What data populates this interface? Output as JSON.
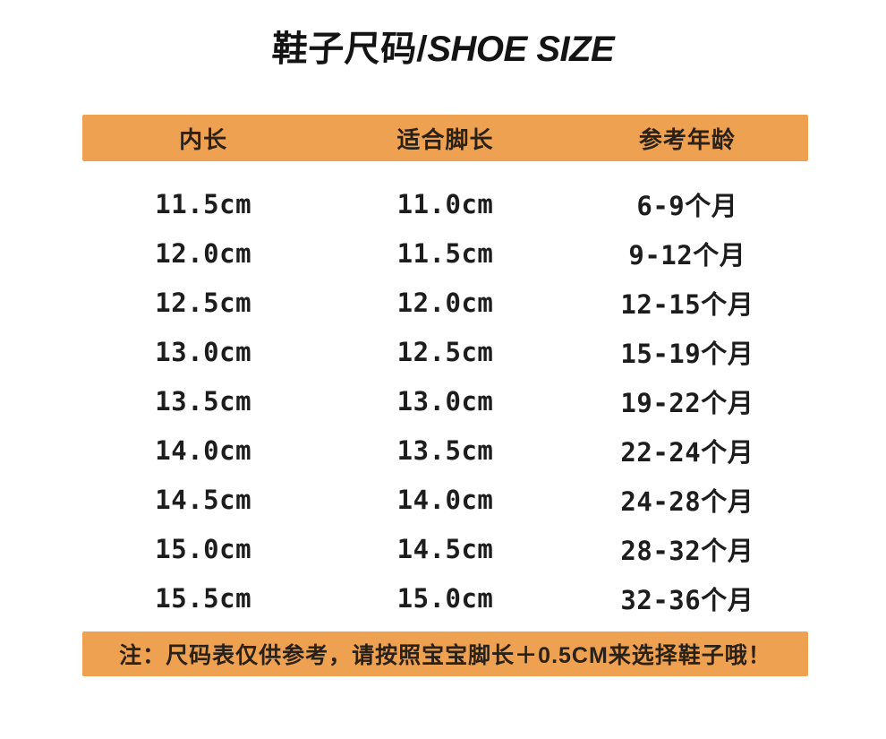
{
  "page": {
    "title_zh": "鞋子尺码/",
    "title_en": "SHOE SIZE"
  },
  "table": {
    "headers": [
      "内长",
      "适合脚长",
      "参考年龄"
    ],
    "rows": [
      [
        "11.5cm",
        "11.0cm",
        "6-9个月"
      ],
      [
        "12.0cm",
        "11.5cm",
        "9-12个月"
      ],
      [
        "12.5cm",
        "12.0cm",
        "12-15个月"
      ],
      [
        "13.0cm",
        "12.5cm",
        "15-19个月"
      ],
      [
        "13.5cm",
        "13.0cm",
        "19-22个月"
      ],
      [
        "14.0cm",
        "13.5cm",
        "22-24个月"
      ],
      [
        "14.5cm",
        "14.0cm",
        "24-28个月"
      ],
      [
        "15.0cm",
        "14.5cm",
        "28-32个月"
      ],
      [
        "15.5cm",
        "15.0cm",
        "32-36个月"
      ]
    ]
  },
  "note": "注：尺码表仅供参考，请按照宝宝脚长＋0.5CM来选择鞋子哦！",
  "colors": {
    "accent": "#EFA152",
    "on_accent_text": "#2a2118",
    "body_text": "#1d1d1d",
    "background": "#ffffff"
  }
}
